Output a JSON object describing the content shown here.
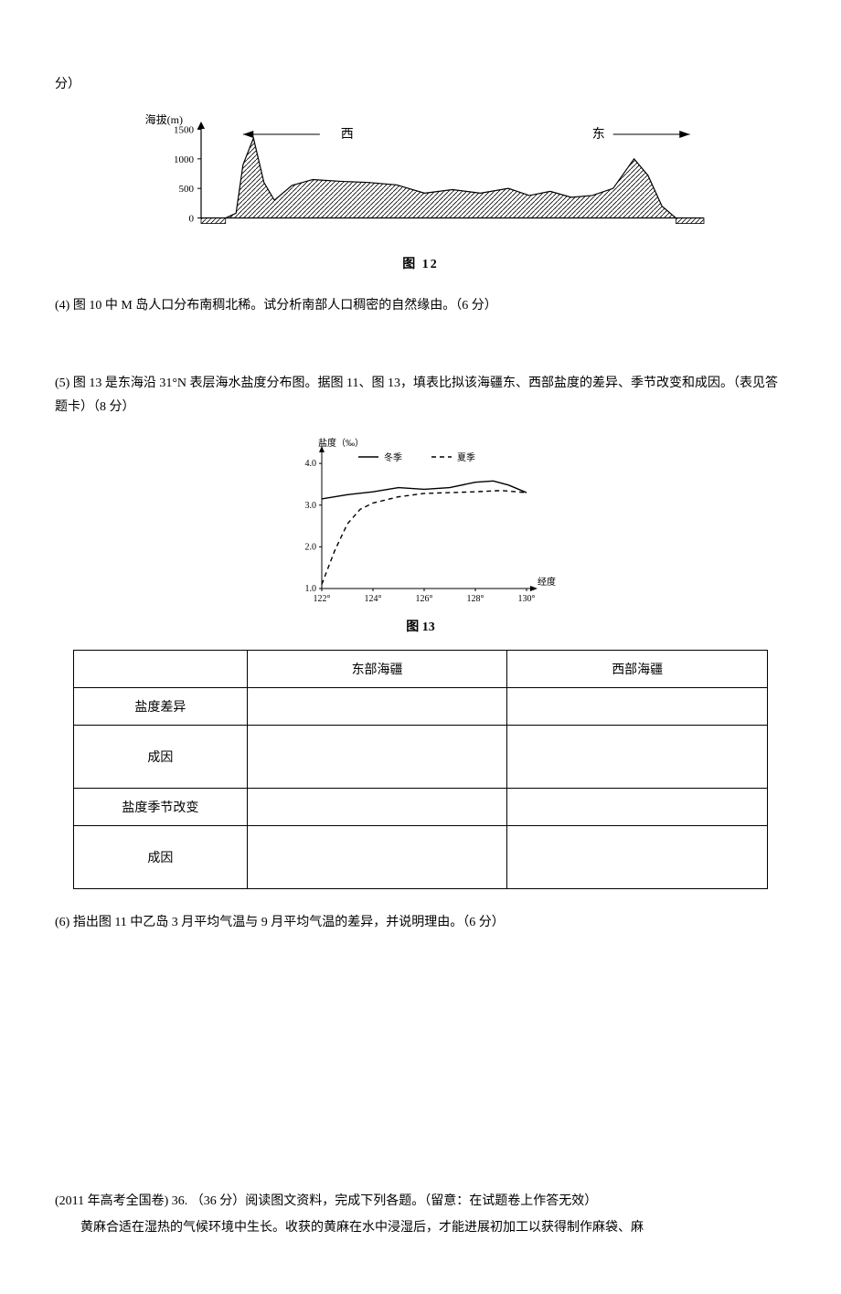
{
  "top_fragment": "分）",
  "fig12": {
    "type": "area-profile",
    "caption": "图  12",
    "y_label": "海拔(m)",
    "y_ticks": [
      0,
      500,
      1000,
      1500
    ],
    "left_dir": "西",
    "right_dir": "东",
    "colors": {
      "axis": "#000000",
      "fill_stroke": "#000000",
      "background": "#ffffff"
    },
    "profile_points": [
      [
        0,
        -80
      ],
      [
        20,
        -80
      ],
      [
        35,
        0
      ],
      [
        50,
        80
      ],
      [
        60,
        900
      ],
      [
        75,
        1350
      ],
      [
        90,
        600
      ],
      [
        105,
        300
      ],
      [
        130,
        550
      ],
      [
        160,
        650
      ],
      [
        200,
        620
      ],
      [
        240,
        600
      ],
      [
        280,
        560
      ],
      [
        320,
        420
      ],
      [
        360,
        480
      ],
      [
        400,
        420
      ],
      [
        440,
        500
      ],
      [
        470,
        380
      ],
      [
        500,
        450
      ],
      [
        530,
        350
      ],
      [
        560,
        380
      ],
      [
        590,
        500
      ],
      [
        620,
        1000
      ],
      [
        640,
        720
      ],
      [
        660,
        200
      ],
      [
        680,
        0
      ],
      [
        700,
        -80
      ],
      [
        720,
        -80
      ]
    ],
    "x_range": [
      0,
      720
    ],
    "y_range": [
      -100,
      1600
    ]
  },
  "q4": {
    "text": "(4) 图 10 中 M 岛人口分布南稠北稀。试分析南部人口稠密的自然缘由。（6 分）"
  },
  "q5": {
    "intro": "(5) 图 13 是东海沿 31°N 表层海水盐度分布图。据图 11、图 13，填表比拟该海疆东、西部盐度的差异、季节改变和成因。（表见答题卡）（8 分）"
  },
  "fig13": {
    "type": "line",
    "caption": "图 13",
    "y_label": "盐度（‰）",
    "x_label": "经度",
    "x_ticks": [
      "122°",
      "124°",
      "126°",
      "128°",
      "130°"
    ],
    "y_ticks": [
      "1.0",
      "2.0",
      "3.0",
      "4.0"
    ],
    "y_range": [
      1.0,
      4.2
    ],
    "legend": {
      "winter": "冬季",
      "summer": "夏季"
    },
    "colors": {
      "axis": "#000000",
      "winter_line": "#000000",
      "summer_line": "#000000",
      "background": "#ffffff"
    },
    "winter": {
      "style": "solid",
      "points": [
        [
          122,
          3.15
        ],
        [
          123,
          3.25
        ],
        [
          124,
          3.32
        ],
        [
          125,
          3.42
        ],
        [
          126,
          3.38
        ],
        [
          127,
          3.42
        ],
        [
          128,
          3.55
        ],
        [
          128.7,
          3.58
        ],
        [
          129.3,
          3.48
        ],
        [
          130,
          3.3
        ]
      ]
    },
    "summer": {
      "style": "dashed",
      "points": [
        [
          122,
          1.1
        ],
        [
          122.5,
          1.9
        ],
        [
          123,
          2.55
        ],
        [
          123.5,
          2.9
        ],
        [
          124,
          3.05
        ],
        [
          125,
          3.2
        ],
        [
          126,
          3.28
        ],
        [
          127,
          3.3
        ],
        [
          128,
          3.32
        ],
        [
          129,
          3.35
        ],
        [
          130,
          3.3
        ]
      ]
    }
  },
  "table": {
    "col1": "东部海疆",
    "col2": "西部海疆",
    "rows": [
      "盐度差异",
      "成因",
      "盐度季节改变",
      "成因"
    ]
  },
  "q6": {
    "text": "(6) 指出图 11 中乙岛 3 月平均气温与 9 月平均气温的差异，并说明理由。（6 分）"
  },
  "footer": {
    "line1": "(2011 年高考全国卷)  36. （36 分）阅读图文资料，完成下列各题。（留意：在试题卷上作答无效）",
    "line2": "黄麻合适在湿热的气候环境中生长。收获的黄麻在水中浸湿后，才能进展初加工以获得制作麻袋、麻"
  }
}
